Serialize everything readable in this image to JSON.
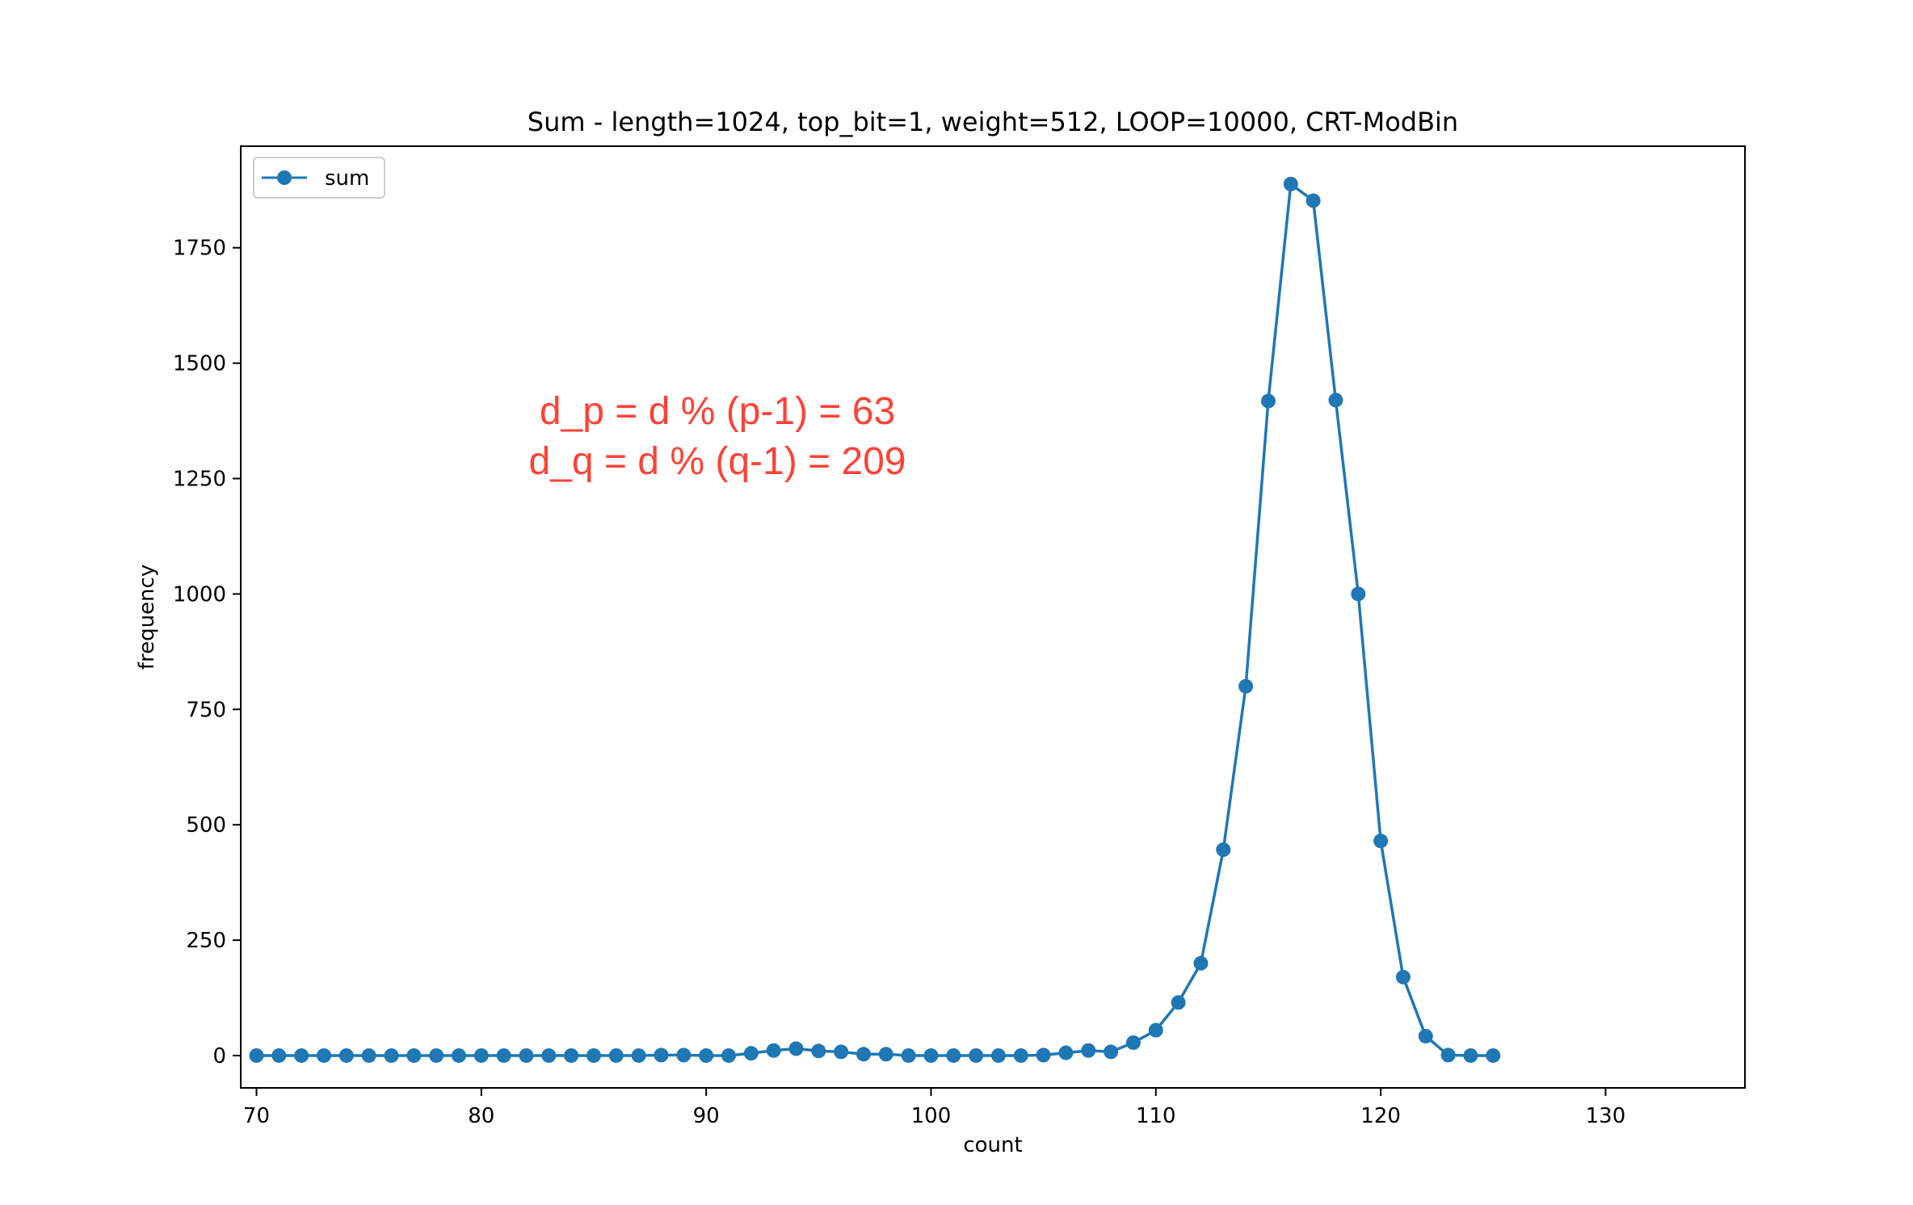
{
  "chart_data": {
    "type": "line",
    "title": "Sum - length=1024, top_bit=1, weight=512, LOOP=10000, CRT-ModBin",
    "xlabel": "count",
    "ylabel": "frequency",
    "xlim": [
      69.3,
      136.2
    ],
    "ylim": [
      -70,
      1970
    ],
    "xticks": [
      70,
      80,
      90,
      100,
      110,
      120,
      130
    ],
    "yticks": [
      0,
      250,
      500,
      750,
      1000,
      1250,
      1500,
      1750
    ],
    "grid": false,
    "legend_position": "upper-left",
    "series": [
      {
        "name": "sum",
        "color": "#1f77b4",
        "marker": "circle",
        "x": [
          70,
          71,
          72,
          73,
          74,
          75,
          76,
          77,
          78,
          79,
          80,
          81,
          82,
          83,
          84,
          85,
          86,
          87,
          88,
          89,
          90,
          91,
          92,
          93,
          94,
          95,
          96,
          97,
          98,
          99,
          100,
          101,
          102,
          103,
          104,
          105,
          106,
          107,
          108,
          109,
          110,
          111,
          112,
          113,
          114,
          115,
          116,
          117,
          118,
          119,
          120,
          121,
          122,
          123,
          124,
          125
        ],
        "y": [
          0,
          0,
          0,
          0,
          0,
          0,
          0,
          0,
          0,
          0,
          0,
          0,
          0,
          0,
          0,
          0,
          0,
          0,
          1,
          1,
          0,
          0,
          5,
          11,
          15,
          10,
          8,
          3,
          3,
          0,
          0,
          0,
          0,
          0,
          0,
          1,
          6,
          11,
          8,
          28,
          55,
          115,
          200,
          446,
          800,
          1418,
          1888,
          1852,
          1420,
          1000,
          465,
          170,
          42,
          1,
          0,
          0
        ]
      }
    ],
    "annotations": [
      {
        "text": "d_p = d % (p-1) = 63",
        "color": "#ff4136"
      },
      {
        "text": "d_q = d % (q-1) = 209",
        "color": "#ff4136"
      }
    ]
  }
}
